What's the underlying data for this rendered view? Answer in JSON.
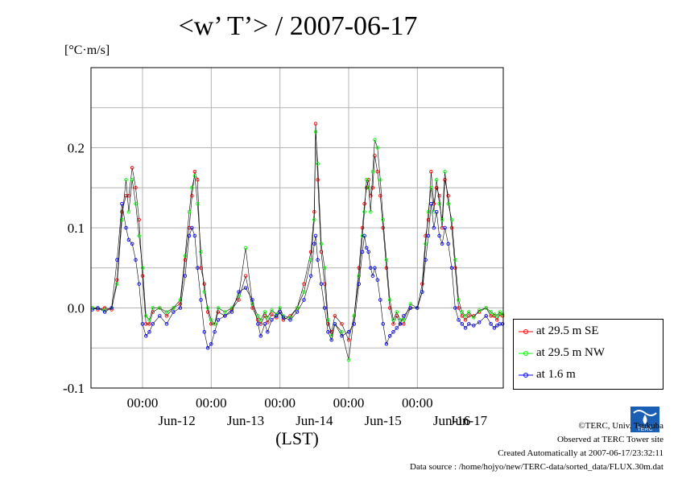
{
  "title": "<w’ T’> / 2007-06-17",
  "unit_label": "[°C·m/s]",
  "legend": {
    "entries": [
      {
        "label": "at 29.5 m SE",
        "color": "#ff0000"
      },
      {
        "label": "at 29.5 m NW",
        "color": "#00ff00"
      },
      {
        "label": "at 1.6 m",
        "color": "#0000ff"
      }
    ]
  },
  "credits": {
    "copyright": "©TERC, Univ. Tsukuba",
    "observed": "Observed at TERC Tower site",
    "created": "Created Automatically at 2007-06-17/23:32:11",
    "source": "Data source : /home/hojyo/new/TERC-data/sorted_data/FLUX.30m.dat"
  },
  "logo_text": "TERC",
  "chart_data": {
    "type": "line",
    "title": "<w’ T’> / 2007-06-17",
    "ylabel": "[°C·m/s]",
    "xlabel": "(LST)",
    "x_unit": "days since Jun-11 00:00",
    "xlim": [
      0.25,
      6.25
    ],
    "ylim": [
      -0.1,
      0.3
    ],
    "yticks": [
      -0.1,
      0.0,
      0.1,
      0.2
    ],
    "ytick_labels": [
      "-0.1",
      "0.0",
      "0.1",
      "0.2"
    ],
    "xticks": [
      1,
      2,
      3,
      4,
      5
    ],
    "xtick_labels": [
      "00:00",
      "00:00",
      "00:00",
      "00:00",
      "00:00"
    ],
    "day_labels": [
      {
        "x": 1.5,
        "label": "Jun-12"
      },
      {
        "x": 2.5,
        "label": "Jun-13"
      },
      {
        "x": 3.5,
        "label": "Jun-14"
      },
      {
        "x": 4.5,
        "label": "Jun-15"
      },
      {
        "x": 5.5,
        "label": "Jun-16"
      },
      {
        "x": 6.5,
        "label": "Jun-17"
      }
    ],
    "grid": true,
    "legend_position": "right",
    "series": [
      {
        "name": "at 29.5 m SE",
        "color": "#ff0000",
        "x": [
          0.27,
          0.35,
          0.45,
          0.55,
          0.63,
          0.7,
          0.76,
          0.8,
          0.85,
          0.9,
          0.95,
          1.0,
          1.05,
          1.1,
          1.15,
          1.25,
          1.35,
          1.45,
          1.55,
          1.62,
          1.68,
          1.72,
          1.76,
          1.8,
          1.85,
          1.9,
          1.95,
          2.0,
          2.05,
          2.1,
          2.2,
          2.3,
          2.4,
          2.5,
          2.6,
          2.68,
          2.72,
          2.78,
          2.82,
          2.88,
          2.95,
          3.0,
          3.05,
          3.15,
          3.25,
          3.35,
          3.45,
          3.5,
          3.52,
          3.55,
          3.6,
          3.65,
          3.7,
          3.75,
          3.8,
          3.9,
          4.0,
          4.08,
          4.15,
          4.2,
          4.23,
          4.26,
          4.29,
          4.32,
          4.35,
          4.38,
          4.42,
          4.46,
          4.5,
          4.55,
          4.6,
          4.65,
          4.7,
          4.75,
          4.8,
          4.9,
          5.0,
          5.07,
          5.12,
          5.16,
          5.2,
          5.24,
          5.28,
          5.32,
          5.36,
          5.4,
          5.45,
          5.5,
          5.55,
          5.6,
          5.65,
          5.7,
          5.75,
          5.82,
          5.9,
          6.0,
          6.07,
          6.12,
          6.16,
          6.2,
          6.24
        ],
        "y": [
          0.0,
          -0.002,
          0.0,
          -0.002,
          0.035,
          0.12,
          0.14,
          0.14,
          0.175,
          0.15,
          0.11,
          0.04,
          -0.02,
          -0.02,
          -0.005,
          0.0,
          -0.01,
          0.0,
          0.005,
          0.06,
          0.1,
          0.14,
          0.17,
          0.16,
          0.05,
          0.03,
          -0.005,
          -0.02,
          -0.02,
          -0.005,
          -0.01,
          -0.002,
          0.01,
          0.04,
          0.0,
          -0.015,
          -0.02,
          -0.01,
          -0.018,
          -0.008,
          -0.012,
          -0.005,
          -0.015,
          -0.01,
          0.0,
          0.03,
          0.07,
          0.12,
          0.23,
          0.16,
          0.07,
          0.03,
          -0.02,
          -0.03,
          -0.01,
          -0.02,
          -0.04,
          -0.01,
          0.05,
          0.1,
          0.13,
          0.15,
          0.16,
          0.14,
          0.15,
          0.19,
          0.17,
          0.14,
          0.1,
          0.05,
          0.0,
          -0.02,
          -0.01,
          -0.02,
          -0.02,
          0.0,
          0.0,
          0.03,
          0.09,
          0.11,
          0.17,
          0.13,
          0.15,
          0.14,
          0.1,
          0.16,
          0.14,
          0.1,
          0.05,
          0.0,
          -0.01,
          -0.015,
          -0.01,
          -0.01,
          -0.005,
          0.0,
          -0.01,
          -0.01,
          -0.015,
          -0.008,
          -0.01
        ]
      },
      {
        "name": "at 29.5 m NW",
        "color": "#00ff00",
        "x": [
          0.27,
          0.35,
          0.45,
          0.55,
          0.63,
          0.7,
          0.76,
          0.8,
          0.85,
          0.9,
          0.95,
          1.0,
          1.05,
          1.1,
          1.15,
          1.25,
          1.35,
          1.45,
          1.55,
          1.62,
          1.68,
          1.72,
          1.76,
          1.8,
          1.85,
          1.9,
          1.95,
          2.0,
          2.05,
          2.1,
          2.2,
          2.3,
          2.4,
          2.5,
          2.6,
          2.68,
          2.72,
          2.78,
          2.82,
          2.88,
          2.95,
          3.0,
          3.05,
          3.15,
          3.25,
          3.35,
          3.45,
          3.5,
          3.52,
          3.55,
          3.6,
          3.65,
          3.7,
          3.75,
          3.8,
          3.9,
          4.0,
          4.08,
          4.15,
          4.2,
          4.23,
          4.26,
          4.29,
          4.32,
          4.35,
          4.38,
          4.42,
          4.46,
          4.5,
          4.55,
          4.6,
          4.65,
          4.7,
          4.75,
          4.8,
          4.9,
          5.0,
          5.07,
          5.12,
          5.16,
          5.2,
          5.24,
          5.28,
          5.32,
          5.36,
          5.4,
          5.45,
          5.5,
          5.55,
          5.6,
          5.65,
          5.7,
          5.75,
          5.82,
          5.9,
          6.0,
          6.07,
          6.12,
          6.16,
          6.2,
          6.24
        ],
        "y": [
          0.0,
          0.0,
          -0.003,
          0.0,
          0.03,
          0.11,
          0.16,
          0.12,
          0.16,
          0.13,
          0.09,
          0.05,
          -0.01,
          -0.015,
          0.0,
          0.0,
          -0.005,
          0.0,
          0.01,
          0.065,
          0.12,
          0.15,
          0.165,
          0.13,
          0.07,
          0.02,
          0.0,
          -0.015,
          -0.02,
          0.0,
          -0.005,
          0.0,
          0.015,
          0.075,
          0.005,
          -0.01,
          -0.015,
          -0.005,
          -0.012,
          -0.003,
          -0.008,
          0.0,
          -0.01,
          -0.012,
          0.0,
          0.02,
          0.06,
          0.11,
          0.22,
          0.18,
          0.08,
          0.05,
          -0.015,
          -0.035,
          -0.02,
          -0.03,
          -0.065,
          -0.01,
          0.04,
          0.09,
          0.12,
          0.16,
          0.15,
          0.12,
          0.17,
          0.21,
          0.2,
          0.16,
          0.11,
          0.06,
          0.01,
          -0.015,
          -0.005,
          -0.015,
          -0.015,
          0.005,
          0.0,
          0.02,
          0.08,
          0.12,
          0.15,
          0.12,
          0.16,
          0.13,
          0.11,
          0.17,
          0.13,
          0.11,
          0.06,
          0.01,
          -0.005,
          -0.01,
          -0.005,
          -0.012,
          -0.003,
          0.0,
          -0.005,
          -0.008,
          -0.01,
          -0.005,
          -0.008
        ]
      },
      {
        "name": "at 1.6 m",
        "color": "#0000ff",
        "x": [
          0.27,
          0.35,
          0.45,
          0.55,
          0.63,
          0.7,
          0.76,
          0.8,
          0.85,
          0.9,
          0.95,
          1.0,
          1.05,
          1.1,
          1.15,
          1.25,
          1.35,
          1.45,
          1.55,
          1.62,
          1.68,
          1.72,
          1.76,
          1.8,
          1.85,
          1.9,
          1.95,
          2.0,
          2.05,
          2.1,
          2.2,
          2.3,
          2.4,
          2.5,
          2.6,
          2.68,
          2.72,
          2.78,
          2.82,
          2.88,
          2.95,
          3.0,
          3.05,
          3.15,
          3.25,
          3.35,
          3.45,
          3.5,
          3.52,
          3.55,
          3.6,
          3.65,
          3.7,
          3.75,
          3.8,
          3.9,
          4.0,
          4.08,
          4.15,
          4.2,
          4.23,
          4.26,
          4.29,
          4.32,
          4.35,
          4.38,
          4.42,
          4.46,
          4.5,
          4.55,
          4.6,
          4.65,
          4.7,
          4.75,
          4.8,
          4.9,
          5.0,
          5.07,
          5.12,
          5.16,
          5.2,
          5.24,
          5.28,
          5.32,
          5.36,
          5.4,
          5.45,
          5.5,
          5.55,
          5.6,
          5.65,
          5.7,
          5.75,
          5.82,
          5.9,
          6.0,
          6.07,
          6.12,
          6.16,
          6.2,
          6.24
        ],
        "y": [
          -0.002,
          0.0,
          -0.005,
          0.0,
          0.06,
          0.13,
          0.1,
          0.085,
          0.08,
          0.06,
          0.03,
          -0.02,
          -0.035,
          -0.03,
          -0.02,
          -0.01,
          -0.02,
          -0.005,
          0.0,
          0.04,
          0.09,
          0.1,
          0.09,
          0.05,
          0.01,
          -0.03,
          -0.05,
          -0.045,
          -0.03,
          -0.015,
          -0.01,
          -0.005,
          0.02,
          0.025,
          0.01,
          -0.02,
          -0.035,
          -0.02,
          -0.03,
          -0.015,
          -0.01,
          -0.005,
          -0.012,
          -0.015,
          -0.005,
          0.01,
          0.04,
          0.08,
          0.09,
          0.06,
          0.03,
          0.0,
          -0.03,
          -0.04,
          -0.02,
          -0.035,
          -0.03,
          -0.02,
          0.03,
          0.07,
          0.09,
          0.075,
          0.07,
          0.05,
          0.04,
          0.05,
          0.035,
          0.01,
          -0.02,
          -0.045,
          -0.035,
          -0.03,
          -0.025,
          -0.02,
          -0.01,
          0.0,
          0.0,
          0.02,
          0.06,
          0.09,
          0.13,
          0.1,
          0.12,
          0.09,
          0.08,
          0.1,
          0.08,
          0.05,
          0.0,
          -0.015,
          -0.02,
          -0.025,
          -0.02,
          -0.022,
          -0.018,
          -0.01,
          -0.02,
          -0.025,
          -0.022,
          -0.02,
          -0.02
        ]
      }
    ]
  }
}
